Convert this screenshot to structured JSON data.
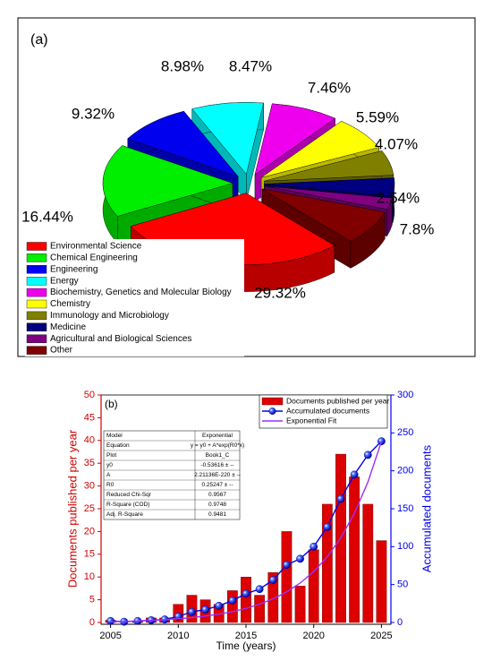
{
  "chart_data": [
    {
      "type": "pie",
      "panel_label": "(a)",
      "categories": [
        "Environmental Science",
        "Chemical Engineering",
        "Engineering",
        "Energy",
        "Biochemistry, Genetics and Molecular Biology",
        "Chemistry",
        "Immunology and Microbiology",
        "Medicine",
        "Agricultural and Biological Sciences",
        "Other"
      ],
      "values": [
        29.32,
        16.44,
        9.32,
        8.98,
        8.47,
        7.46,
        5.59,
        4.07,
        2.54,
        7.8
      ],
      "value_labels": [
        "29.32%",
        "16.44%",
        "9.32%",
        "8.98%",
        "8.47%",
        "7.46%",
        "5.59%",
        "4.07%",
        "2.54%",
        "7.8%"
      ],
      "colors": [
        "#ff0000",
        "#00ee00",
        "#0000ee",
        "#00ffff",
        "#ee00ee",
        "#ffff00",
        "#808000",
        "#000080",
        "#800080",
        "#800000"
      ],
      "legend": "lower left"
    },
    {
      "type": "bar_line",
      "panel_label": "(b)",
      "x": [
        2005,
        2006,
        2007,
        2008,
        2009,
        2010,
        2011,
        2012,
        2013,
        2014,
        2015,
        2016,
        2017,
        2018,
        2019,
        2020,
        2021,
        2022,
        2023,
        2024,
        2025
      ],
      "xlabel": "Time (years)",
      "ylabel": "Documents published per year",
      "y2label": "Accumulated documents",
      "xlim": [
        2004.3,
        2025.7
      ],
      "xticks": [
        2005,
        2010,
        2015,
        2020,
        2025
      ],
      "ylim": [
        0,
        50
      ],
      "yticks": [
        0,
        5,
        10,
        15,
        20,
        25,
        30,
        35,
        40,
        45,
        50
      ],
      "y2lim": [
        0,
        300
      ],
      "y2ticks": [
        0,
        50,
        100,
        150,
        200,
        250,
        300
      ],
      "series": [
        {
          "name": "Documents published per year",
          "color": "#dd0000",
          "type": "bar",
          "values": [
            0.5,
            0,
            0.3,
            1,
            1,
            4,
            6,
            5,
            4,
            7,
            10,
            6,
            11,
            20,
            8,
            16,
            26,
            37,
            32,
            26,
            18
          ]
        },
        {
          "name": "Accumulated documents",
          "color": "#0000ee",
          "type": "line",
          "marker": "circle",
          "axis": "y2",
          "values": [
            2,
            1,
            2,
            3,
            4,
            8,
            14,
            17,
            22,
            29,
            38,
            44,
            56,
            76,
            84,
            100,
            126,
            163,
            195,
            221,
            239
          ]
        },
        {
          "name": "Exponential Fit",
          "color": "#9b30ff",
          "type": "line",
          "axis": "y2",
          "values": [
            1.0,
            1.4,
            2.0,
            2.7,
            3.7,
            4.9,
            6.5,
            8.5,
            11.0,
            14.3,
            18.6,
            24.1,
            31.2,
            40.3,
            52.0,
            67.1,
            86.6,
            111.6,
            143.8,
            185.2,
            238.6
          ]
        }
      ],
      "fit_table": [
        [
          "Model",
          "Exponential"
        ],
        [
          "Equation",
          "y = y0 + A*exp(R0*x)"
        ],
        [
          "Plot",
          "Book1_C"
        ],
        [
          "y0",
          "-0.53616 ± --"
        ],
        [
          "A",
          "2.21136E-220 ± --"
        ],
        [
          "R0",
          "0.25247 ± --"
        ],
        [
          "Reduced Chi-Sqr",
          "0.9567"
        ],
        [
          "R-Square (COD)",
          "0.9748"
        ],
        [
          "Adj. R-Square",
          "0.9481"
        ]
      ],
      "legend": "upper right"
    }
  ]
}
